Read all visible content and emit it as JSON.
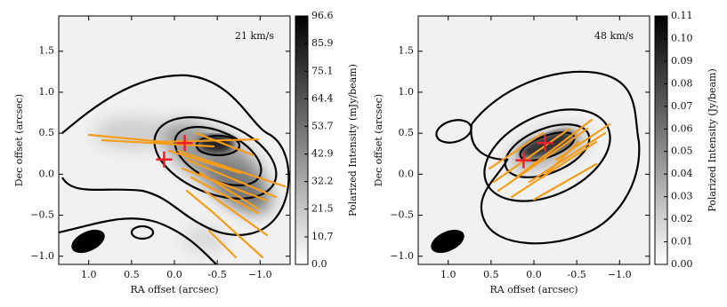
{
  "chart_data": [
    {
      "type": "image",
      "annotation": "21 km/s",
      "xlabel": "RA offset (arcsec)",
      "ylabel": "Dec offset (arcsec)",
      "xlim": [
        1.35,
        -1.35
      ],
      "ylim": [
        -1.1,
        1.93
      ],
      "xticks": [
        {
          "value": 1.0,
          "label": "1.0"
        },
        0.5,
        {
          "value": 0.0,
          "label": "0.0"
        },
        -0.5,
        {
          "value": -1.0,
          "label": "−1.0"
        }
      ],
      "yticks": [
        {
          "value": -1.0,
          "label": "−1.0"
        },
        {
          "value": -0.5,
          "label": "−0.5"
        },
        {
          "value": 0.0,
          "label": "0.0"
        },
        0.5,
        {
          "value": 1.0,
          "label": "1.0"
        },
        1.5
      ],
      "colorbar": {
        "label": "Polarized Intensity (mJy/beam)",
        "lim": [
          0,
          96.6
        ],
        "ticks": [
          {
            "value": 0,
            "label": "0.0"
          },
          10.7,
          21.5,
          32.2,
          42.9,
          53.7,
          64.4,
          75.1,
          85.9,
          96.6
        ]
      },
      "markers": {
        "x": [
          0.12,
          -0.12
        ],
        "y": [
          0.18,
          0.38
        ],
        "color": "#e8202a"
      }
    },
    {
      "type": "image",
      "annotation": "48 km/s",
      "xlabel": "RA offset (arcsec)",
      "ylabel": "Dec offset (arcsec)",
      "xlim": [
        1.35,
        -1.35
      ],
      "ylim": [
        -1.1,
        1.93
      ],
      "xticks": [
        {
          "value": 1.0,
          "label": "1.0"
        },
        0.5,
        {
          "value": 0.0,
          "label": "0.0"
        },
        -0.5,
        {
          "value": -1.0,
          "label": "−1.0"
        }
      ],
      "yticks": [
        {
          "value": -1.0,
          "label": "−1.0"
        },
        {
          "value": -0.5,
          "label": "−0.5"
        },
        {
          "value": 0.0,
          "label": "0.0"
        },
        0.5,
        {
          "value": 1.0,
          "label": "1.0"
        },
        1.5
      ],
      "colorbar": {
        "label": "Polarized Intensity (Jy/beam)",
        "lim": [
          0,
          0.11
        ],
        "ticks": [
          {
            "value": 0,
            "label": "0.00"
          },
          0.01,
          0.02,
          0.03,
          0.04,
          0.05,
          0.06,
          0.07,
          0.08,
          0.09,
          {
            "value": 0.1,
            "label": "0.10"
          },
          0.11
        ]
      },
      "markers": {
        "x": [
          0.12,
          -0.13
        ],
        "y": [
          0.17,
          0.38
        ],
        "color": "#e8202a"
      }
    }
  ]
}
